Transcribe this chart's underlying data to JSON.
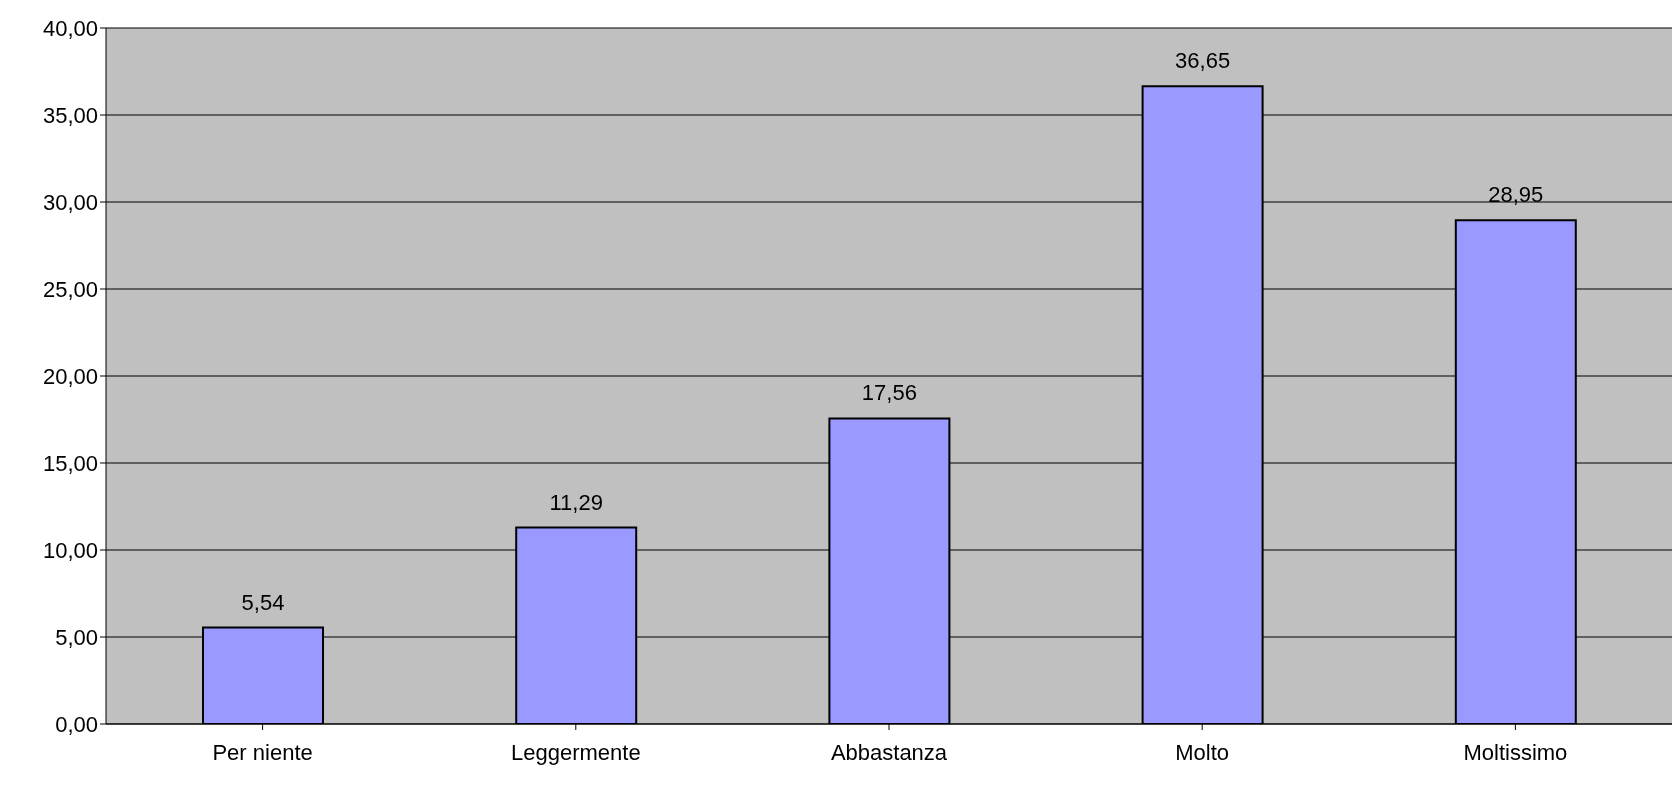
{
  "chart_data": {
    "type": "bar",
    "categories": [
      "Per niente",
      "Leggermente",
      "Abbastanza",
      "Molto",
      "Moltissimo"
    ],
    "values": [
      5.54,
      11.29,
      17.56,
      36.65,
      28.95
    ],
    "value_labels": [
      "5,54",
      "11,29",
      "17,56",
      "36,65",
      "28,95"
    ],
    "color": "#9999ff",
    "ylim": [
      0,
      40
    ],
    "yticks": [
      {
        "value": 0,
        "label": "0,00"
      },
      {
        "value": 5,
        "label": "5,00"
      },
      {
        "value": 10,
        "label": "10,00"
      },
      {
        "value": 15,
        "label": "15,00"
      },
      {
        "value": 20,
        "label": "20,00"
      },
      {
        "value": 25,
        "label": "25,00"
      },
      {
        "value": 30,
        "label": "30,00"
      },
      {
        "value": 35,
        "label": "35,00"
      },
      {
        "value": 40,
        "label": "40,00"
      }
    ],
    "grid": "y",
    "legend": false
  }
}
